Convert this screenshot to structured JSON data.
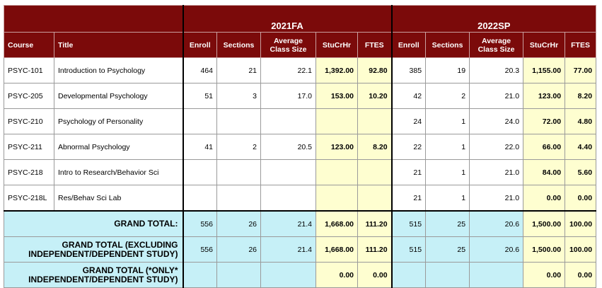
{
  "terms": [
    "2021FA",
    "2022SP"
  ],
  "columns": {
    "course": "Course",
    "title": "Title",
    "term_cols": [
      "Enroll",
      "Sections",
      "Average Class Size",
      "StuCrHr",
      "FTES"
    ]
  },
  "rows": [
    {
      "course": "PSYC-101",
      "title": "Introduction to Psychology",
      "fa": [
        "464",
        "21",
        "22.1",
        "1,392.00",
        "92.80"
      ],
      "sp": [
        "385",
        "19",
        "20.3",
        "1,155.00",
        "77.00"
      ]
    },
    {
      "course": "PSYC-205",
      "title": "Developmental Psychology",
      "fa": [
        "51",
        "3",
        "17.0",
        "153.00",
        "10.20"
      ],
      "sp": [
        "42",
        "2",
        "21.0",
        "123.00",
        "8.20"
      ]
    },
    {
      "course": "PSYC-210",
      "title": "Psychology of Personality",
      "fa": [
        "",
        "",
        "",
        "",
        ""
      ],
      "sp": [
        "24",
        "1",
        "24.0",
        "72.00",
        "4.80"
      ]
    },
    {
      "course": "PSYC-211",
      "title": "Abnormal Psychology",
      "fa": [
        "41",
        "2",
        "20.5",
        "123.00",
        "8.20"
      ],
      "sp": [
        "22",
        "1",
        "22.0",
        "66.00",
        "4.40"
      ]
    },
    {
      "course": "PSYC-218",
      "title": "Intro to Research/Behavior Sci",
      "fa": [
        "",
        "",
        "",
        "",
        ""
      ],
      "sp": [
        "21",
        "1",
        "21.0",
        "84.00",
        "5.60"
      ]
    },
    {
      "course": "PSYC-218L",
      "title": "Res/Behav Sci Lab",
      "fa": [
        "",
        "",
        "",
        "",
        ""
      ],
      "sp": [
        "21",
        "1",
        "21.0",
        "0.00",
        "0.00"
      ]
    }
  ],
  "totals": [
    {
      "label": "GRAND TOTAL:",
      "fa": [
        "556",
        "26",
        "21.4",
        "1,668.00",
        "111.20"
      ],
      "sp": [
        "515",
        "25",
        "20.6",
        "1,500.00",
        "100.00"
      ]
    },
    {
      "label": "GRAND TOTAL (EXCLUDING INDEPENDENT/DEPENDENT STUDY)",
      "fa": [
        "556",
        "26",
        "21.4",
        "1,668.00",
        "111.20"
      ],
      "sp": [
        "515",
        "25",
        "20.6",
        "1,500.00",
        "100.00"
      ]
    },
    {
      "label": "GRAND TOTAL (*ONLY* INDEPENDENT/DEPENDENT STUDY)",
      "fa": [
        "",
        "",
        "",
        "0.00",
        "0.00"
      ],
      "sp": [
        "",
        "",
        "",
        "0.00",
        "0.00"
      ]
    }
  ],
  "colors": {
    "header_bg": "#7b0a0a",
    "highlight_bg": "#fefed0",
    "total_bg": "#c6f0f7"
  }
}
